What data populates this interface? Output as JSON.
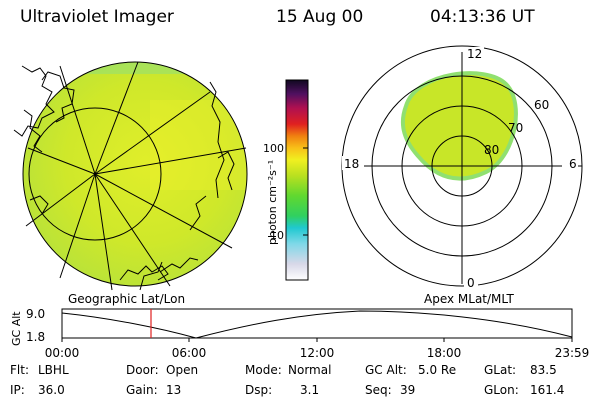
{
  "header": {
    "instrument": "Ultraviolet Imager",
    "date": "15 Aug 00",
    "time": "04:13:36 UT"
  },
  "colorbar": {
    "unit_label": "photon cm⁻²s⁻¹",
    "ticks": [
      "100",
      "10"
    ]
  },
  "polar_plot": {
    "mlt_labels": {
      "top": "12",
      "left": "18",
      "right": "6",
      "bottom": "0"
    },
    "lat_labels": [
      "60",
      "70",
      "80"
    ]
  },
  "altitude_plot": {
    "ylabel": "GC Alt",
    "y_ticks": [
      "9.0",
      "1.8"
    ],
    "left_title": "Geographic Lat/Lon",
    "right_title": "Apex MLat/MLT",
    "x_ticks": [
      "00:00",
      "06:00",
      "12:00",
      "18:00",
      "23:59"
    ],
    "current_marker_time": "04:13",
    "colors": {
      "marker": "#e02020"
    }
  },
  "info": {
    "filter_label": "Flt:",
    "filter": "LBHL",
    "ip_label": "IP:",
    "ip": "36.0",
    "door_label": "Door:",
    "door": "Open",
    "gain_label": "Gain:",
    "gain": "13",
    "mode_label": "Mode:",
    "mode": "Normal",
    "dsp_label": "Dsp:",
    "dsp": "3.1",
    "gcalt_label": "GC Alt:",
    "gcalt": "5.0 Re",
    "seq_label": "Seq:",
    "seq": "39",
    "glat_label": "GLat:",
    "glat": "83.5",
    "glon_label": "GLon:",
    "glon": "161.4"
  }
}
